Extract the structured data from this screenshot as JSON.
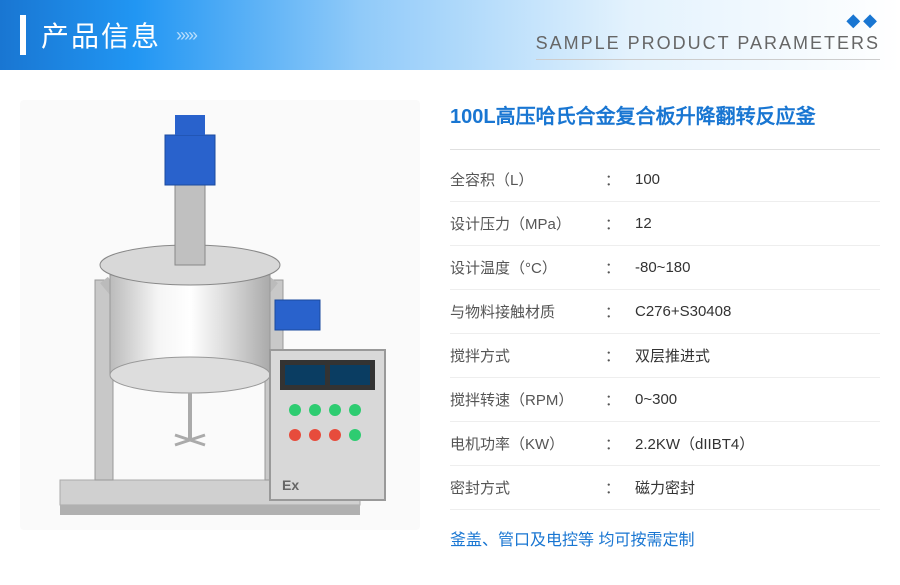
{
  "header": {
    "title": "产品信息",
    "subtitle": "SAMPLE PRODUCT PARAMETERS"
  },
  "product": {
    "title": "100L高压哈氏合金复合板升降翻转反应釜",
    "specs": [
      {
        "label": "全容积（L）",
        "value": "100"
      },
      {
        "label": "设计压力（MPa）",
        "value": "12"
      },
      {
        "label": "设计温度（°C）",
        "value": "-80~180"
      },
      {
        "label": "与物料接触材质",
        "value": "C276+S30408"
      },
      {
        "label": "搅拌方式",
        "value": "双层推进式"
      },
      {
        "label": "搅拌转速（RPM）",
        "value": "0~300"
      },
      {
        "label": "电机功率（KW）",
        "value": "2.2KW（dIIBT4）"
      },
      {
        "label": "密封方式",
        "value": "磁力密封"
      }
    ],
    "custom_note": "釜盖、管口及电控等 均可按需定制"
  },
  "colors": {
    "primary": "#1976d2",
    "text": "#555555",
    "border": "#e0e0e0"
  }
}
